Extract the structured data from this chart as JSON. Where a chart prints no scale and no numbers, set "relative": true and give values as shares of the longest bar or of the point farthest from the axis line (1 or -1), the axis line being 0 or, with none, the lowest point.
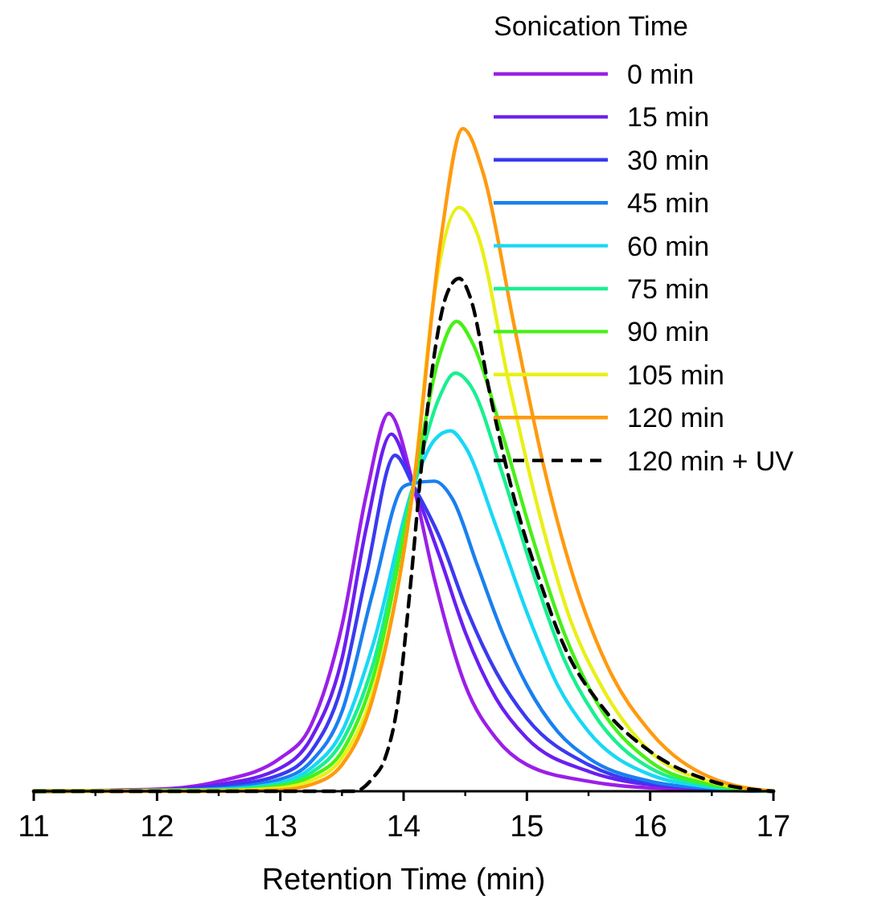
{
  "chart_data": {
    "type": "line",
    "xlabel": "Retention Time (min)",
    "legend_title": "Sonication Time",
    "relative": true,
    "legend": "top right",
    "xlim": [
      11,
      17
    ],
    "xticks": [
      11,
      12,
      13,
      14,
      15,
      16,
      17
    ],
    "series": [
      {
        "name": "0 min",
        "color": "#9b1fe8",
        "x": [
          11,
          12,
          12.5,
          13,
          13.25,
          13.5,
          13.7,
          13.88,
          14.08,
          14.25,
          14.5,
          14.75,
          15,
          15.5,
          16,
          17
        ],
        "values": [
          0,
          0.003,
          0.015,
          0.05,
          0.1,
          0.25,
          0.45,
          0.57,
          0.461,
          0.32,
          0.16,
          0.08,
          0.04,
          0.015,
          0.005,
          0
        ]
      },
      {
        "name": "15 min",
        "color": "#6a1ff0",
        "x": [
          11,
          12,
          12.5,
          13,
          13.25,
          13.5,
          13.7,
          13.9,
          14.08,
          14.3,
          14.5,
          14.75,
          15,
          15.5,
          16,
          17
        ],
        "values": [
          0,
          0.002,
          0.01,
          0.035,
          0.08,
          0.2,
          0.4,
          0.539,
          0.461,
          0.35,
          0.24,
          0.14,
          0.08,
          0.03,
          0.01,
          0
        ]
      },
      {
        "name": "30 min",
        "color": "#3a3af0",
        "x": [
          11,
          12,
          12.5,
          13,
          13.25,
          13.5,
          13.7,
          13.93,
          14.08,
          14.3,
          14.5,
          14.75,
          15,
          15.5,
          16,
          17
        ],
        "values": [
          0,
          0.001,
          0.007,
          0.025,
          0.06,
          0.16,
          0.33,
          0.507,
          0.461,
          0.38,
          0.28,
          0.18,
          0.11,
          0.04,
          0.012,
          0
        ]
      },
      {
        "name": "45 min",
        "color": "#1a7ff0",
        "x": [
          11,
          12,
          12.5,
          13,
          13.25,
          13.5,
          13.75,
          14.0,
          14.08,
          14.25,
          14.4,
          14.6,
          14.8,
          15,
          15.25,
          15.5,
          16,
          16.5,
          17
        ],
        "values": [
          0,
          0.001,
          0.004,
          0.018,
          0.045,
          0.12,
          0.3,
          0.46,
          0.465,
          0.468,
          0.44,
          0.34,
          0.24,
          0.16,
          0.09,
          0.05,
          0.015,
          0.004,
          0
        ]
      },
      {
        "name": "60 min",
        "color": "#18d8f5",
        "x": [
          11,
          12.5,
          13,
          13.25,
          13.5,
          13.75,
          14.08,
          14.25,
          14.38,
          14.5,
          14.75,
          15,
          15.25,
          15.5,
          16,
          16.5,
          17
        ],
        "values": [
          0,
          0.003,
          0.013,
          0.035,
          0.09,
          0.22,
          0.461,
          0.53,
          0.544,
          0.52,
          0.4,
          0.27,
          0.16,
          0.09,
          0.025,
          0.006,
          0
        ]
      },
      {
        "name": "75 min",
        "color": "#18f090",
        "x": [
          11,
          12.5,
          13,
          13.25,
          13.5,
          13.75,
          14.08,
          14.28,
          14.42,
          14.55,
          14.8,
          15.05,
          15.3,
          15.55,
          16,
          16.5,
          17
        ],
        "values": [
          0,
          0.002,
          0.01,
          0.028,
          0.075,
          0.19,
          0.461,
          0.59,
          0.631,
          0.61,
          0.48,
          0.33,
          0.2,
          0.115,
          0.035,
          0.008,
          0
        ]
      },
      {
        "name": "90 min",
        "color": "#48f018",
        "x": [
          11,
          12.5,
          13,
          13.25,
          13.5,
          13.75,
          14.08,
          14.28,
          14.43,
          14.55,
          14.8,
          15.05,
          15.3,
          15.55,
          16,
          16.5,
          17
        ],
        "values": [
          0,
          0.001,
          0.008,
          0.022,
          0.06,
          0.17,
          0.461,
          0.65,
          0.709,
          0.68,
          0.54,
          0.38,
          0.24,
          0.14,
          0.045,
          0.01,
          0
        ]
      },
      {
        "name": "105 min",
        "color": "#e8f018",
        "x": [
          11,
          12.5,
          13,
          13.25,
          13.5,
          13.75,
          14.08,
          14.25,
          14.45,
          14.6,
          14.85,
          15.1,
          15.35,
          15.6,
          16,
          16.5,
          17
        ],
        "values": [
          0,
          0.001,
          0.005,
          0.016,
          0.05,
          0.15,
          0.461,
          0.75,
          0.881,
          0.84,
          0.62,
          0.42,
          0.26,
          0.16,
          0.06,
          0.014,
          0
        ]
      },
      {
        "name": "120 min",
        "color": "#ff9a10",
        "x": [
          11,
          12.5,
          13,
          13.25,
          13.5,
          13.75,
          14.08,
          14.3,
          14.48,
          14.65,
          14.9,
          15.15,
          15.4,
          15.65,
          16,
          16.5,
          17
        ],
        "values": [
          0,
          0,
          0.002,
          0.01,
          0.04,
          0.14,
          0.461,
          0.83,
          1,
          0.93,
          0.7,
          0.48,
          0.31,
          0.19,
          0.09,
          0.02,
          0
        ]
      },
      {
        "name": "120 min + UV",
        "color": "#000000",
        "line_style": "dashed",
        "x": [
          11,
          13.6,
          13.75,
          13.85,
          13.95,
          14.05,
          14.15,
          14.25,
          14.35,
          14.45,
          14.55,
          14.7,
          14.9,
          15.1,
          15.3,
          15.6,
          16,
          16.5,
          17
        ],
        "values": [
          0,
          0,
          0.02,
          0.05,
          0.13,
          0.3,
          0.5,
          0.66,
          0.75,
          0.774,
          0.74,
          0.6,
          0.44,
          0.32,
          0.22,
          0.13,
          0.06,
          0.015,
          0
        ]
      }
    ]
  }
}
